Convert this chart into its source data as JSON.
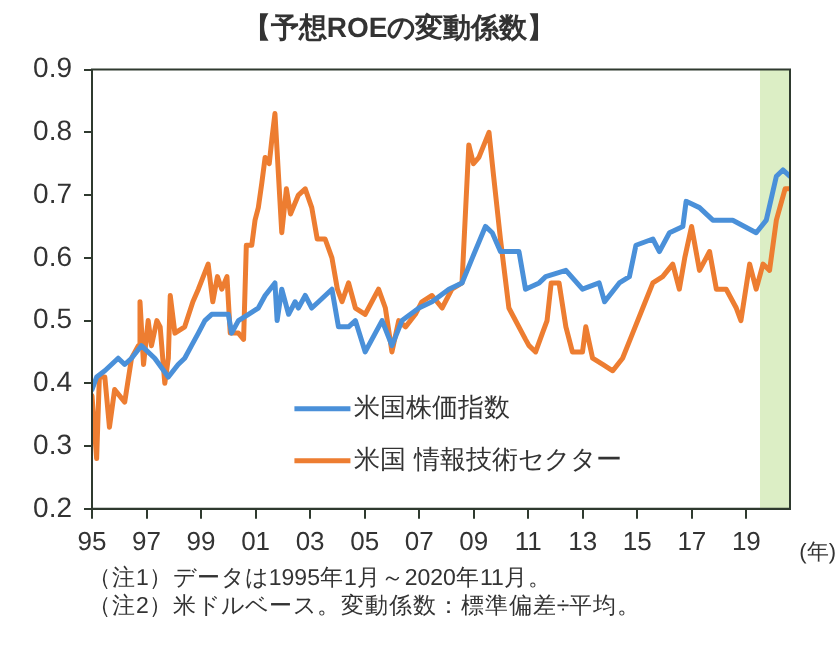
{
  "chart_data": {
    "type": "line",
    "title": "【予想ROEの変動係数】",
    "xlabel": "(年)",
    "xlim": [
      1995,
      2020.6
    ],
    "xticks": [
      {
        "value": 1995,
        "label": "95"
      },
      {
        "value": 1997,
        "label": "97"
      },
      {
        "value": 1999,
        "label": "99"
      },
      {
        "value": 2001,
        "label": "01"
      },
      {
        "value": 2003,
        "label": "03"
      },
      {
        "value": 2005,
        "label": "05"
      },
      {
        "value": 2007,
        "label": "07"
      },
      {
        "value": 2009,
        "label": "09"
      },
      {
        "value": 2011,
        "label": "11"
      },
      {
        "value": 2013,
        "label": "13"
      },
      {
        "value": 2015,
        "label": "15"
      },
      {
        "value": 2017,
        "label": "17"
      },
      {
        "value": 2019,
        "label": "19"
      }
    ],
    "bands": [
      {
        "axis": "x",
        "from": 2019.5,
        "to": 2020.6,
        "color": "#8cc63f"
      }
    ],
    "ylim": [
      0.2,
      0.9
    ],
    "yticks": [
      0.2,
      0.3,
      0.4,
      0.5,
      0.6,
      0.7,
      0.8,
      0.9
    ],
    "grid": false,
    "legend": "bottom",
    "marker": "none",
    "line_style": "solid",
    "annotations": [
      "（注1）データは1995年1月～2020年11月。",
      "（注2）米ドルベース。変動係数：標準偏差÷平均。"
    ],
    "series": [
      {
        "name": "米国株価指数",
        "color": "#4a90d9",
        "x": [
          1995.0,
          1995.17,
          1995.47,
          1995.96,
          1996.2,
          1996.45,
          1996.81,
          1997.3,
          1997.8,
          1998.16,
          1998.4,
          1998.65,
          1998.9,
          1999.14,
          1999.39,
          2000.0,
          2000.12,
          2000.37,
          2000.74,
          2001.1,
          2001.35,
          2001.71,
          2001.79,
          2001.96,
          2002.21,
          2002.45,
          2002.57,
          2002.82,
          2003.06,
          2003.31,
          2003.8,
          2004.04,
          2004.41,
          2004.66,
          2005.02,
          2005.39,
          2005.64,
          2006.0,
          2006.37,
          2006.99,
          2007.47,
          2008.09,
          2008.57,
          2008.95,
          2009.43,
          2009.68,
          2009.98,
          2010.66,
          2010.9,
          2011.4,
          2011.64,
          2012.38,
          2012.99,
          2013.6,
          2013.8,
          2014.34,
          2014.71,
          2014.95,
          2015.57,
          2015.81,
          2016.18,
          2016.67,
          2016.79,
          2017.28,
          2017.77,
          2018.5,
          2019.36,
          2019.73,
          2020.1,
          2020.34,
          2020.6
        ],
        "values": [
          0.39,
          0.41,
          0.42,
          0.44,
          0.43,
          0.44,
          0.46,
          0.44,
          0.41,
          0.43,
          0.44,
          0.46,
          0.48,
          0.5,
          0.51,
          0.51,
          0.48,
          0.5,
          0.51,
          0.52,
          0.54,
          0.56,
          0.5,
          0.55,
          0.51,
          0.53,
          0.52,
          0.54,
          0.52,
          0.53,
          0.55,
          0.49,
          0.49,
          0.5,
          0.45,
          0.48,
          0.5,
          0.46,
          0.5,
          0.52,
          0.53,
          0.55,
          0.56,
          0.6,
          0.65,
          0.64,
          0.61,
          0.61,
          0.55,
          0.56,
          0.57,
          0.58,
          0.55,
          0.56,
          0.53,
          0.56,
          0.57,
          0.62,
          0.63,
          0.61,
          0.64,
          0.65,
          0.69,
          0.68,
          0.66,
          0.66,
          0.64,
          0.66,
          0.73,
          0.74,
          0.73
        ]
      },
      {
        "name": "米国 情報技術セクター",
        "color": "#ed7d31",
        "x": [
          1995.0,
          1995.17,
          1995.27,
          1995.47,
          1995.64,
          1995.83,
          1996.2,
          1996.45,
          1996.7,
          1996.76,
          1996.89,
          1997.06,
          1997.18,
          1997.38,
          1997.5,
          1997.67,
          1997.8,
          1997.87,
          1998.04,
          1998.4,
          1998.7,
          1998.9,
          1999.26,
          1999.43,
          1999.6,
          1999.76,
          1999.95,
          2000.07,
          2000.37,
          2000.56,
          2000.66,
          2000.86,
          2000.98,
          2001.1,
          2001.23,
          2001.35,
          2001.5,
          2001.6,
          2001.71,
          2001.96,
          2002.13,
          2002.28,
          2002.57,
          2002.82,
          2003.06,
          2003.26,
          2003.55,
          2003.8,
          2004.0,
          2004.17,
          2004.41,
          2004.66,
          2005.02,
          2005.51,
          2005.76,
          2006.0,
          2006.25,
          2006.5,
          2006.86,
          2007.1,
          2007.47,
          2007.84,
          2008.2,
          2008.57,
          2008.82,
          2008.99,
          2009.19,
          2009.56,
          2009.73,
          2009.98,
          2010.29,
          2010.9,
          2011.03,
          2011.27,
          2011.52,
          2011.69,
          2011.84,
          2012.13,
          2012.38,
          2012.62,
          2012.99,
          2013.11,
          2013.36,
          2013.73,
          2014.1,
          2014.46,
          2014.83,
          2015.2,
          2015.57,
          2015.93,
          2016.3,
          2016.54,
          2016.74,
          2016.99,
          2017.28,
          2017.65,
          2017.9,
          2018.26,
          2018.63,
          2018.8,
          2019.12,
          2019.36,
          2019.61,
          2019.85,
          2020.1,
          2020.42,
          2020.6
        ],
        "values": [
          0.38,
          0.28,
          0.41,
          0.41,
          0.33,
          0.39,
          0.37,
          0.44,
          0.46,
          0.53,
          0.43,
          0.5,
          0.46,
          0.5,
          0.49,
          0.4,
          0.44,
          0.54,
          0.48,
          0.49,
          0.53,
          0.55,
          0.59,
          0.53,
          0.57,
          0.55,
          0.57,
          0.48,
          0.48,
          0.47,
          0.62,
          0.62,
          0.66,
          0.68,
          0.72,
          0.76,
          0.75,
          0.79,
          0.83,
          0.64,
          0.71,
          0.67,
          0.7,
          0.71,
          0.68,
          0.63,
          0.63,
          0.6,
          0.55,
          0.53,
          0.56,
          0.52,
          0.51,
          0.55,
          0.52,
          0.45,
          0.5,
          0.49,
          0.51,
          0.53,
          0.54,
          0.52,
          0.55,
          0.56,
          0.78,
          0.75,
          0.76,
          0.8,
          0.73,
          0.63,
          0.52,
          0.47,
          0.46,
          0.45,
          0.48,
          0.5,
          0.56,
          0.56,
          0.49,
          0.45,
          0.45,
          0.49,
          0.44,
          0.43,
          0.42,
          0.44,
          0.48,
          0.52,
          0.56,
          0.57,
          0.59,
          0.55,
          0.6,
          0.65,
          0.58,
          0.61,
          0.55,
          0.55,
          0.52,
          0.5,
          0.59,
          0.55,
          0.59,
          0.58,
          0.66,
          0.71,
          0.71
        ]
      }
    ]
  }
}
